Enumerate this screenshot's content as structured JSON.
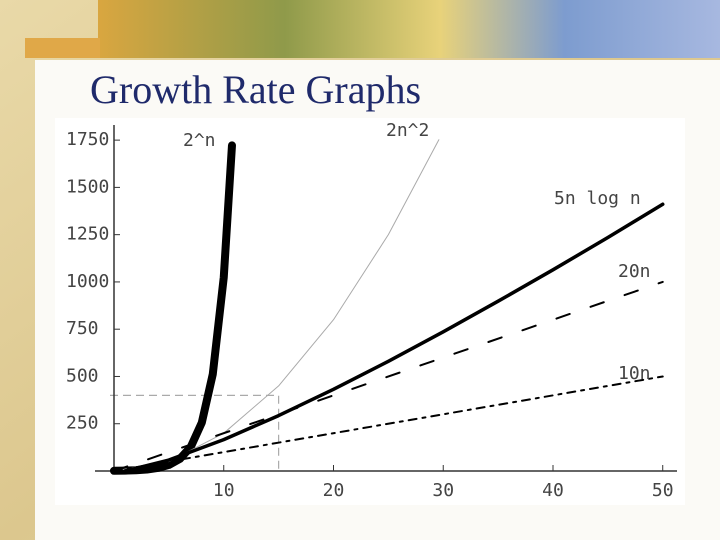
{
  "chart_data": {
    "type": "line",
    "title": "Growth Rate Graphs",
    "xlim": [
      0,
      51.3
    ],
    "ylim": [
      0,
      1830
    ],
    "xticks": [
      10,
      20,
      30,
      40,
      50
    ],
    "yticks": [
      250,
      500,
      750,
      1000,
      1250,
      1500,
      1750
    ],
    "highlight_box": {
      "x": 15,
      "y": 400
    },
    "series": [
      {
        "name": "2^n",
        "color": "#000000",
        "width": 8,
        "style": "solid",
        "x": [
          0,
          1,
          2,
          3,
          4,
          5,
          6,
          7,
          8,
          9,
          10,
          10.75
        ],
        "values": [
          1,
          2,
          4,
          8,
          16,
          32,
          64,
          128,
          256,
          512,
          1024,
          1722
        ]
      },
      {
        "name": "2n^2",
        "color": "#aaaaaa",
        "width": 1,
        "style": "solid",
        "x": [
          0,
          5,
          10,
          15,
          20,
          25,
          29.6
        ],
        "values": [
          0,
          50,
          200,
          450,
          800,
          1250,
          1752
        ]
      },
      {
        "name": "5n log n",
        "color": "#000000",
        "width": 3.5,
        "style": "solid",
        "x": [
          1,
          5,
          10,
          15,
          20,
          25,
          30,
          35,
          40,
          45,
          50
        ],
        "values": [
          0,
          58,
          166,
          293,
          432,
          580,
          736,
          898,
          1064,
          1235,
          1411
        ]
      },
      {
        "name": "20n",
        "color": "#000000",
        "width": 2,
        "style": "dashed",
        "x": [
          0,
          50
        ],
        "values": [
          0,
          1000
        ]
      },
      {
        "name": "10n",
        "color": "#000000",
        "width": 2,
        "style": "dashdot",
        "x": [
          0,
          50
        ],
        "values": [
          0,
          500
        ]
      }
    ]
  }
}
